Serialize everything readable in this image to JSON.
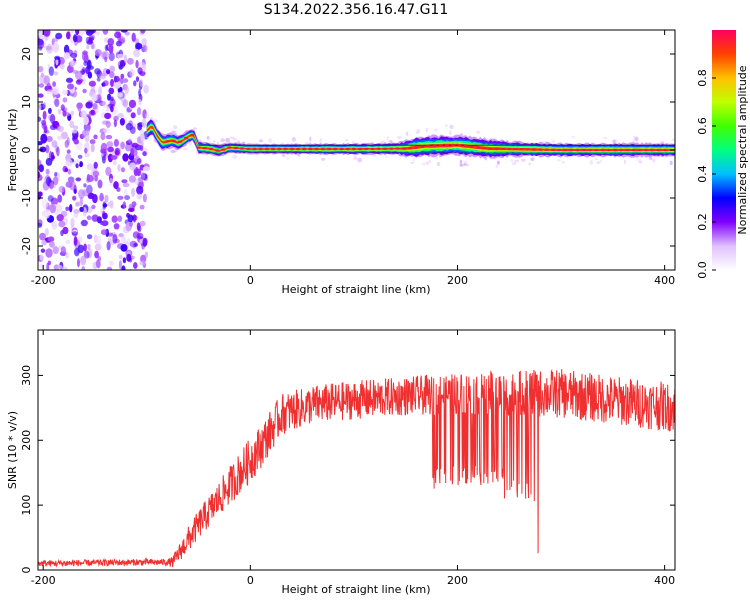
{
  "title": "S134.2022.356.16.47.G11",
  "chart_data": [
    {
      "type": "heatmap",
      "name": "spectrogram",
      "xlabel": "Height of straight line (km)",
      "ylabel": "Frequency (Hz)",
      "xlim": [
        -205,
        410
      ],
      "ylim": [
        -25,
        25
      ],
      "xticks": [
        -200,
        0,
        200,
        400
      ],
      "yticks": [
        -20,
        -10,
        0,
        10,
        20
      ],
      "colorbar": {
        "label": "Normalized spectral amplitude",
        "range": [
          0,
          1
        ],
        "ticks": [
          0.0,
          0.2,
          0.4,
          0.6,
          0.8
        ],
        "colors": [
          "#ffffff",
          "#e0c0ff",
          "#8000ff",
          "#0000ff",
          "#00c0ff",
          "#00ff80",
          "#40ff00",
          "#c0ff00",
          "#ffc000",
          "#ff4000",
          "#ff0060"
        ]
      },
      "noise_region_x": [
        -205,
        -100
      ],
      "trace_center": [
        [
          -100,
          4.0
        ],
        [
          -95,
          5.0
        ],
        [
          -90,
          3.0
        ],
        [
          -85,
          1.5
        ],
        [
          -80,
          1.8
        ],
        [
          -75,
          2.0
        ],
        [
          -70,
          1.5
        ],
        [
          -65,
          2.0
        ],
        [
          -60,
          2.8
        ],
        [
          -55,
          3.2
        ],
        [
          -50,
          0.5
        ],
        [
          -40,
          0.3
        ],
        [
          -30,
          -0.2
        ],
        [
          -20,
          0.5
        ],
        [
          0,
          0.2
        ],
        [
          100,
          0.2
        ],
        [
          150,
          0.3
        ],
        [
          170,
          0.8
        ],
        [
          200,
          1.0
        ],
        [
          230,
          0.3
        ],
        [
          300,
          0.0
        ],
        [
          410,
          0.0
        ]
      ],
      "trace_halfwidth": [
        [
          -100,
          1.8
        ],
        [
          -50,
          1.3
        ],
        [
          0,
          1.0
        ],
        [
          140,
          1.2
        ],
        [
          160,
          2.2
        ],
        [
          230,
          2.0
        ],
        [
          250,
          1.6
        ],
        [
          300,
          1.4
        ],
        [
          410,
          1.4
        ]
      ]
    },
    {
      "type": "line",
      "name": "snr",
      "xlabel": "Height of straight line (km)",
      "ylabel": "SNR (10 * v/v)",
      "xlim": [
        -205,
        410
      ],
      "ylim": [
        0,
        370
      ],
      "xticks": [
        -200,
        0,
        200,
        400
      ],
      "yticks": [
        0,
        100,
        200,
        300
      ],
      "color": "#f03030",
      "series_envelope": [
        [
          -205,
          10
        ],
        [
          -100,
          12
        ],
        [
          -75,
          12
        ],
        [
          -65,
          35
        ],
        [
          -50,
          70
        ],
        [
          -30,
          110
        ],
        [
          -10,
          150
        ],
        [
          10,
          190
        ],
        [
          30,
          240
        ],
        [
          60,
          255
        ],
        [
          100,
          262
        ],
        [
          150,
          268
        ],
        [
          200,
          272
        ],
        [
          250,
          272
        ],
        [
          300,
          272
        ],
        [
          350,
          262
        ],
        [
          400,
          252
        ],
        [
          410,
          250
        ]
      ],
      "noise_amplitude": [
        [
          -205,
          5
        ],
        [
          -80,
          5
        ],
        [
          -60,
          20
        ],
        [
          0,
          35
        ],
        [
          50,
          30
        ],
        [
          150,
          30
        ],
        [
          250,
          35
        ],
        [
          300,
          38
        ],
        [
          410,
          38
        ]
      ],
      "dropouts": [
        {
          "x_range": [
            175,
            180
          ],
          "min": 125
        },
        {
          "x_range": [
            180,
            245
          ],
          "min": 130
        },
        {
          "x_range": [
            245,
            270
          ],
          "min": 110
        },
        {
          "x_range": [
            270,
            275
          ],
          "min": 100
        },
        {
          "x_range": [
            276,
            278
          ],
          "min": 20
        }
      ]
    }
  ]
}
